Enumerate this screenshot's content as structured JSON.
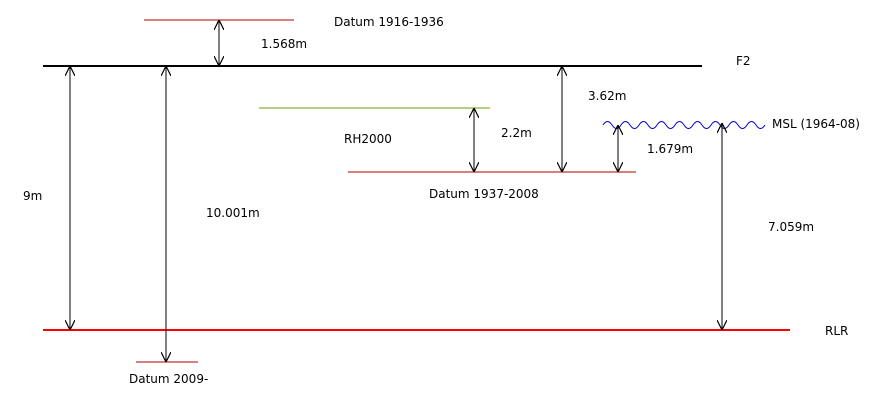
{
  "colors": {
    "black": "#000000",
    "datum_red": "#b00000",
    "rlr_red": "#ff0000",
    "rh2000_green": "#6aa000",
    "msl_blue": "#0000cc"
  },
  "labels": {
    "datum_1916_1936": "Datum 1916-1936",
    "f2": "F2",
    "rh2000": "RH2000",
    "msl": "MSL (1964-08)",
    "datum_1937_2008": "Datum 1937-2008",
    "rlr": "RLR",
    "datum_2009": "Datum 2009-"
  },
  "dimensions": {
    "f2_to_1916": "1.568m",
    "f2_to_1937": "3.62m",
    "rh2000_to_1937": "2.2m",
    "msl_to_1937": "1.679m",
    "f2_to_rlr": "9m",
    "f2_to_2009": "10.001m",
    "msl_to_rlr": "7.059m"
  }
}
